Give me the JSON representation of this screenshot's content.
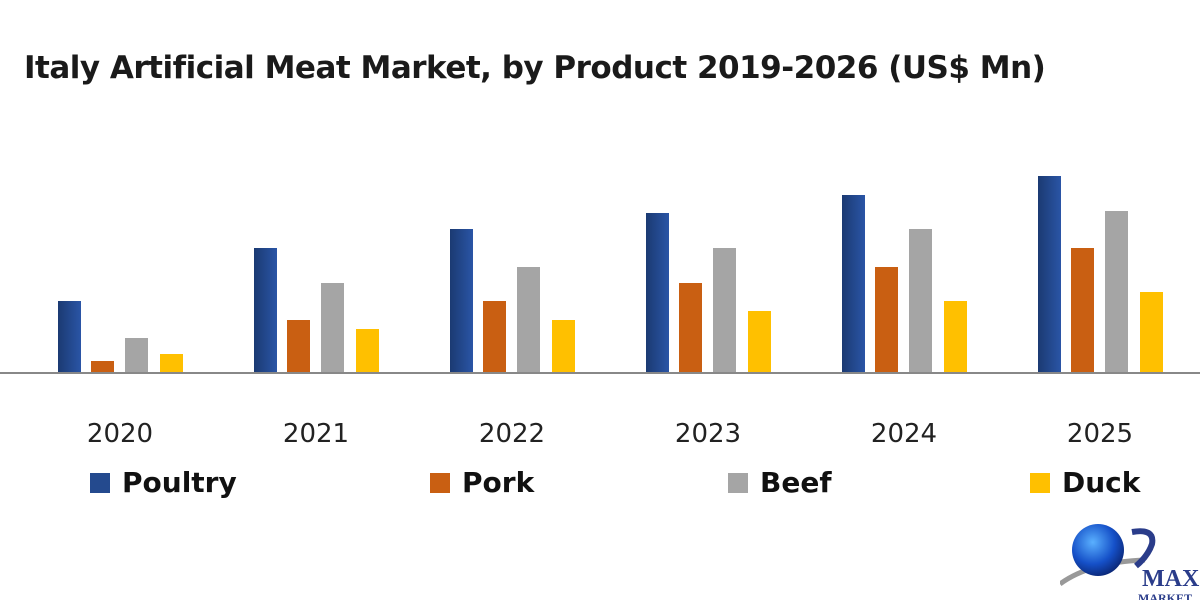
{
  "chart_data": {
    "type": "bar",
    "title": "Italy Artificial Meat Market, by Product 2019-2026 (US$ Mn)",
    "xlabel": "",
    "ylabel": "",
    "categories": [
      "2020",
      "2021",
      "2022",
      "2023",
      "2024",
      "2025"
    ],
    "series": [
      {
        "name": "Poultry",
        "color": "#244a8e",
        "values": [
          72,
          125,
          144,
          160,
          178,
          197
        ]
      },
      {
        "name": "Pork",
        "color": "#c95f12",
        "values": [
          12,
          53,
          72,
          90,
          106,
          125
        ]
      },
      {
        "name": "Beef",
        "color": "#a5a5a5",
        "values": [
          35,
          90,
          106,
          125,
          144,
          162
        ]
      },
      {
        "name": "Duck",
        "color": "#ffc000",
        "values": [
          19,
          44,
          53,
          62,
          72,
          81
        ]
      }
    ],
    "ylim": [
      0,
      200
    ],
    "grid": false,
    "y_axis_visible": false,
    "legend_position": "bottom"
  },
  "logo": {
    "line1": "MAX",
    "line2": "MARKET"
  }
}
